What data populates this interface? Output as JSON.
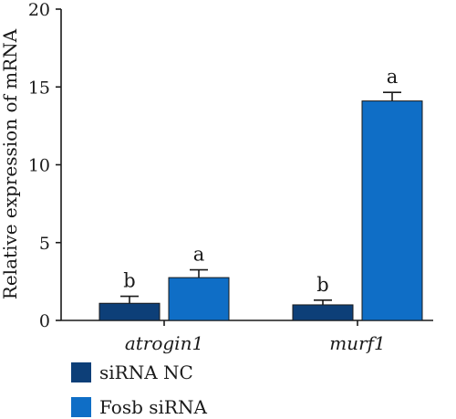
{
  "chart_data": {
    "type": "bar",
    "title": "",
    "xlabel": "",
    "ylabel": "Relative expression of mRNA",
    "ylim": [
      0,
      20
    ],
    "yticks": [
      0,
      5,
      10,
      15,
      20
    ],
    "categories": [
      "atrogin1",
      "murf1"
    ],
    "series": [
      {
        "name": "siRNA NC",
        "color": "#0d3f78",
        "values": [
          1.1,
          1.0
        ],
        "errors": [
          0.45,
          0.3
        ],
        "annotations": [
          "b",
          "b"
        ]
      },
      {
        "name": "Fosb siRNA",
        "color": "#0f6ec6",
        "values": [
          2.75,
          14.1
        ],
        "errors": [
          0.5,
          0.55
        ],
        "annotations": [
          "a",
          "a"
        ]
      }
    ],
    "legend_position": "bottom-left"
  }
}
